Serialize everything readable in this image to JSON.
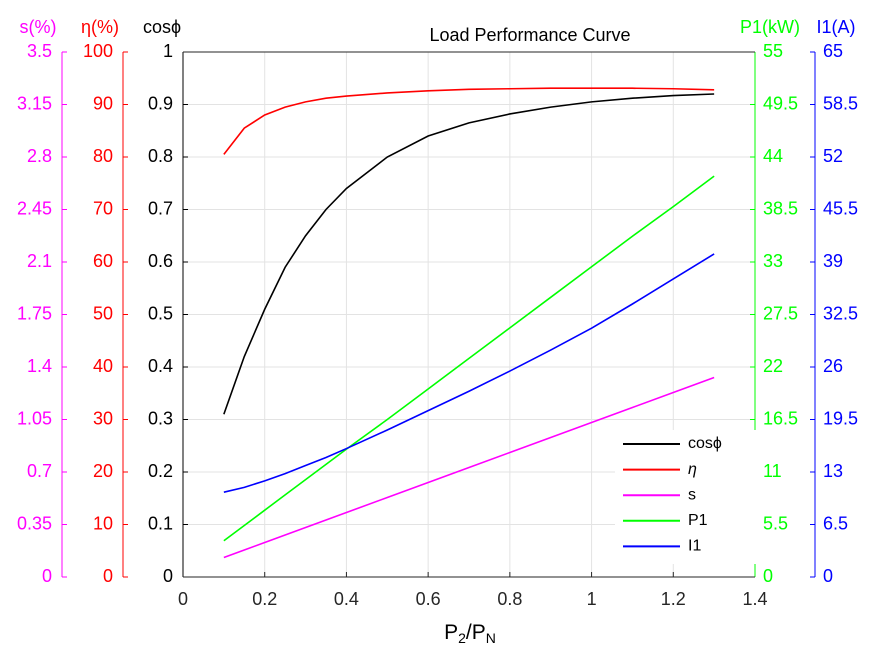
{
  "chart_data": {
    "type": "line",
    "title": "Load Performance Curve",
    "xlabel": [
      "P",
      "2",
      "/P",
      "N"
    ],
    "x": [
      0.1,
      0.15,
      0.2,
      0.25,
      0.3,
      0.35,
      0.4,
      0.5,
      0.6,
      0.7,
      0.8,
      0.9,
      1.0,
      1.1,
      1.2,
      1.3
    ],
    "xlim": [
      0,
      1.4
    ],
    "xticks": [
      0,
      0.2,
      0.4,
      0.6,
      0.8,
      1,
      1.2,
      1.4
    ],
    "grid": true,
    "legend": "lower right",
    "axes": [
      {
        "label": "s(%)",
        "color": "#ff00ff",
        "ylim": [
          0,
          3.5
        ],
        "yticks": [
          0,
          0.35,
          0.7,
          1.05,
          1.4,
          1.75,
          2.1,
          2.45,
          2.8,
          3.15,
          3.5
        ]
      },
      {
        "label": "η(%)",
        "color": "#ff0000",
        "ylim": [
          0,
          100
        ],
        "yticks": [
          0,
          10,
          20,
          30,
          40,
          50,
          60,
          70,
          80,
          90,
          100
        ]
      },
      {
        "label": "cosϕ",
        "color": "#000000",
        "ylim": [
          0,
          1
        ],
        "yticks": [
          0,
          0.1,
          0.2,
          0.3,
          0.4,
          0.5,
          0.6,
          0.7,
          0.8,
          0.9,
          1
        ]
      },
      {
        "label": "P1(kW)",
        "color": "#00ff00",
        "ylim": [
          0,
          55
        ],
        "yticks": [
          0,
          5.5,
          11,
          16.5,
          22,
          27.5,
          33,
          38.5,
          44,
          49.5,
          55
        ]
      },
      {
        "label": "I1(A)",
        "color": "#0000ff",
        "ylim": [
          0,
          65
        ],
        "yticks": [
          0,
          6.5,
          13,
          19.5,
          26,
          32.5,
          39,
          45.5,
          52,
          58.5,
          65
        ]
      }
    ],
    "series": [
      {
        "name": "cosϕ",
        "color": "#000000",
        "axis": 2,
        "values": [
          0.31,
          0.42,
          0.51,
          0.59,
          0.65,
          0.7,
          0.74,
          0.8,
          0.84,
          0.865,
          0.882,
          0.895,
          0.905,
          0.912,
          0.917,
          0.92
        ]
      },
      {
        "name": "η",
        "color": "#ff0000",
        "axis": 1,
        "values": [
          80.5,
          85.5,
          88,
          89.5,
          90.5,
          91.2,
          91.6,
          92.2,
          92.6,
          92.9,
          93,
          93.1,
          93.1,
          93.1,
          93,
          92.8
        ]
      },
      {
        "name": "s",
        "color": "#ff00ff",
        "axis": 0,
        "values": [
          0.13,
          0.18,
          0.23,
          0.28,
          0.33,
          0.38,
          0.43,
          0.53,
          0.63,
          0.73,
          0.83,
          0.93,
          1.03,
          1.13,
          1.23,
          1.33
        ]
      },
      {
        "name": "P1",
        "color": "#00ff00",
        "axis": 3,
        "values": [
          3.8,
          5.4,
          7.0,
          8.6,
          10.2,
          11.8,
          13.4,
          16.5,
          19.7,
          22.9,
          26.1,
          29.3,
          32.5,
          35.7,
          38.8,
          42.0
        ]
      },
      {
        "name": "I1",
        "color": "#0000ff",
        "axis": 4,
        "values": [
          10.5,
          11.1,
          11.9,
          12.8,
          13.8,
          14.8,
          15.9,
          18.2,
          20.6,
          23.0,
          25.5,
          28.1,
          30.8,
          33.8,
          36.9,
          40.0
        ]
      }
    ]
  }
}
